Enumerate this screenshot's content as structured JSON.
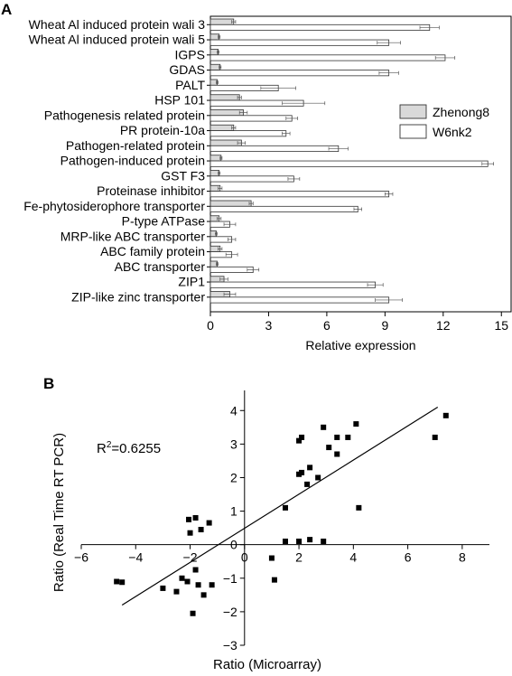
{
  "panel_a_label": "A",
  "panel_b_label": "B",
  "colors": {
    "zhenong8": "#d9d9d9",
    "w6nk2": "#ffffff",
    "stroke": "#000000",
    "error": "#555555"
  },
  "chart_data": [
    {
      "type": "bar",
      "orientation": "horizontal",
      "categories": [
        "Wheat Al induced protein wali 3",
        "Wheat Al induced protein wali 5",
        "IGPS",
        "GDAS",
        "PALT",
        "HSP 101",
        "Pathogenesis related protein",
        "PR protein-10a",
        "Pathogen-related protein",
        "Pathogen-induced protein",
        "GST F3",
        "Proteinase inhibitor",
        "Fe-phytosiderophore transporter",
        "P-type ATPase",
        "MRP-like ABC transporter",
        "ABC family protein",
        "ABC transporter",
        "ZIP1",
        "ZIP-like zinc transporter"
      ],
      "series": [
        {
          "name": "Zhenong8",
          "values": [
            1.2,
            0.45,
            0.4,
            0.5,
            0.35,
            1.5,
            1.7,
            1.2,
            1.6,
            0.55,
            0.45,
            0.5,
            2.1,
            0.45,
            0.3,
            0.5,
            0.35,
            0.7,
            1.0
          ],
          "errors": [
            0.1,
            0.05,
            0.05,
            0.05,
            0.05,
            0.1,
            0.2,
            0.1,
            0.2,
            0.05,
            0.05,
            0.1,
            0.1,
            0.1,
            0.05,
            0.1,
            0.05,
            0.2,
            0.3
          ]
        },
        {
          "name": "W6nk2",
          "values": [
            11.3,
            9.2,
            12.1,
            9.2,
            3.5,
            4.8,
            4.2,
            3.9,
            6.6,
            14.3,
            4.3,
            9.2,
            7.6,
            1.0,
            1.1,
            1.1,
            2.2,
            8.5,
            9.2
          ],
          "errors": [
            0.5,
            0.6,
            0.5,
            0.5,
            0.9,
            1.1,
            0.3,
            0.2,
            0.5,
            0.3,
            0.3,
            0.2,
            0.2,
            0.3,
            0.2,
            0.3,
            0.3,
            0.4,
            0.7
          ]
        }
      ],
      "xlabel": "Relative expression",
      "xlim": [
        0,
        15.5
      ],
      "xticks": [
        0,
        3,
        6,
        9,
        12,
        15
      ],
      "legend": "right"
    },
    {
      "type": "scatter",
      "points": [
        [
          -4.7,
          -1.1
        ],
        [
          -4.5,
          -1.12
        ],
        [
          -3.0,
          -1.3
        ],
        [
          -2.5,
          -1.4
        ],
        [
          -2.3,
          -1.0
        ],
        [
          -2.1,
          -1.1
        ],
        [
          -1.9,
          -2.05
        ],
        [
          -1.8,
          -0.75
        ],
        [
          -1.7,
          -1.2
        ],
        [
          -1.5,
          -1.5
        ],
        [
          -1.2,
          -1.2
        ],
        [
          -2.0,
          0.35
        ],
        [
          -2.05,
          0.75
        ],
        [
          -1.8,
          0.8
        ],
        [
          -1.3,
          0.65
        ],
        [
          -1.6,
          0.45
        ],
        [
          1.0,
          -0.4
        ],
        [
          1.1,
          -1.05
        ],
        [
          1.5,
          0.1
        ],
        [
          2.0,
          0.1
        ],
        [
          2.4,
          0.15
        ],
        [
          2.9,
          0.1
        ],
        [
          1.5,
          1.1
        ],
        [
          2.0,
          2.1
        ],
        [
          2.1,
          2.15
        ],
        [
          2.3,
          1.8
        ],
        [
          2.4,
          2.3
        ],
        [
          2.7,
          2.0
        ],
        [
          2.0,
          3.1
        ],
        [
          2.1,
          3.2
        ],
        [
          2.9,
          3.5
        ],
        [
          3.1,
          2.9
        ],
        [
          3.4,
          2.7
        ],
        [
          3.4,
          3.2
        ],
        [
          3.8,
          3.2
        ],
        [
          4.1,
          3.6
        ],
        [
          4.2,
          1.1
        ],
        [
          7.0,
          3.2
        ],
        [
          7.4,
          3.85
        ]
      ],
      "fit_line": {
        "x": [
          -4.5,
          7.1
        ],
        "y": [
          -1.8,
          4.1
        ]
      },
      "annotation": {
        "base": "R",
        "sup": "2",
        "rest": "=0.6255"
      },
      "xlabel": "Ratio (Microarray)",
      "ylabel": "Ratio (Real Time RT PCR)",
      "xlim": [
        -6,
        9
      ],
      "ylim": [
        -3,
        4.6
      ],
      "xticks": [
        -6,
        -4,
        -2,
        0,
        2,
        4,
        6,
        8
      ],
      "yticks": [
        -3,
        -2,
        -1,
        0,
        1,
        2,
        3,
        4
      ],
      "axes": "crossing-at-origin"
    }
  ]
}
